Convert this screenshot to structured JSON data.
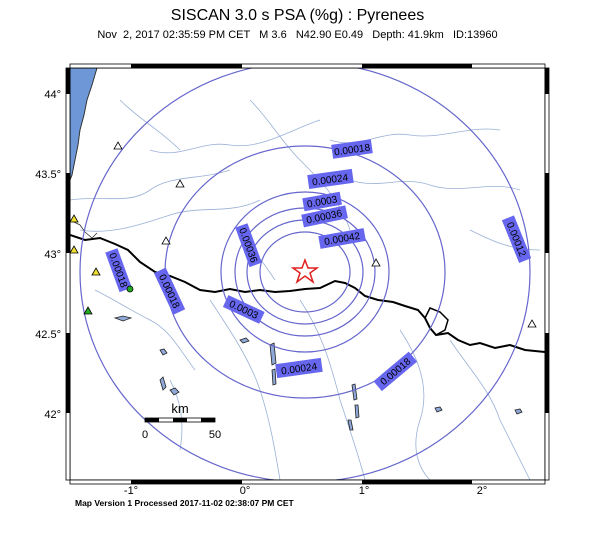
{
  "header": {
    "title": "SISCAN 3.0 s PSA (%g) : Pyrenees",
    "subtitle": "Nov  2, 2017 02:35:59 PM CET   M 3.6   N42.90 E0.49   Depth: 41.9km   ID:13960"
  },
  "axes": {
    "lat_ticks": [
      "44°",
      "43.5°",
      "43°",
      "42.5°",
      "42°"
    ],
    "lon_ticks": [
      "-1°",
      "0°",
      "1°",
      "2°"
    ]
  },
  "contours": {
    "labels": [
      "0.00018",
      "0.00024",
      "0.0003",
      "0.00036",
      "0.00042",
      "0.00036",
      "0.00012",
      "0.00018",
      "0.00018",
      "0.0003",
      "0.00024",
      "0.00018"
    ],
    "line_color": "#6666cc",
    "label_bg": "#6666ee"
  },
  "scale_bar": {
    "unit": "km",
    "start": "0",
    "end": "50"
  },
  "footer": {
    "text": "Map Version 1 Processed 2017-11-02 02:38:07 PM CET"
  }
}
